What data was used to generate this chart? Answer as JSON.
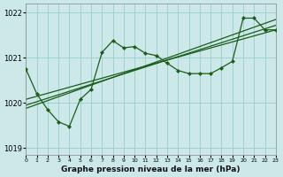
{
  "title": "Graphe pression niveau de la mer (hPa)",
  "bg_color": "#cce8e8",
  "line_color": "#1a5e1a",
  "grid_color": "#99cccc",
  "xlim": [
    0,
    23
  ],
  "ylim": [
    1018.85,
    1022.2
  ],
  "yticks": [
    1019,
    1020,
    1021,
    1022
  ],
  "xticks": [
    0,
    1,
    2,
    3,
    4,
    5,
    6,
    7,
    8,
    9,
    10,
    11,
    12,
    13,
    14,
    15,
    16,
    17,
    18,
    19,
    20,
    21,
    22,
    23
  ],
  "wiggly_x": [
    0,
    1,
    2,
    3,
    4,
    5,
    6,
    7,
    8,
    9,
    10,
    11,
    12,
    13,
    14,
    15,
    16,
    17,
    18,
    19,
    20,
    21,
    22,
    23
  ],
  "wiggly_y": [
    1020.75,
    1020.2,
    1019.85,
    1019.58,
    1019.48,
    1020.08,
    1020.3,
    1021.12,
    1021.38,
    1021.22,
    1021.25,
    1021.1,
    1021.05,
    1020.88,
    1020.72,
    1020.65,
    1020.65,
    1020.65,
    1020.78,
    1020.92,
    1021.88,
    1021.88,
    1021.62,
    1021.62
  ],
  "trend1_x": [
    0,
    23
  ],
  "trend1_y": [
    1019.88,
    1021.85
  ],
  "trend2_x": [
    0,
    23
  ],
  "trend2_y": [
    1020.08,
    1021.62
  ],
  "trend3_x": [
    0,
    23
  ],
  "trend3_y": [
    1019.95,
    1021.72
  ]
}
